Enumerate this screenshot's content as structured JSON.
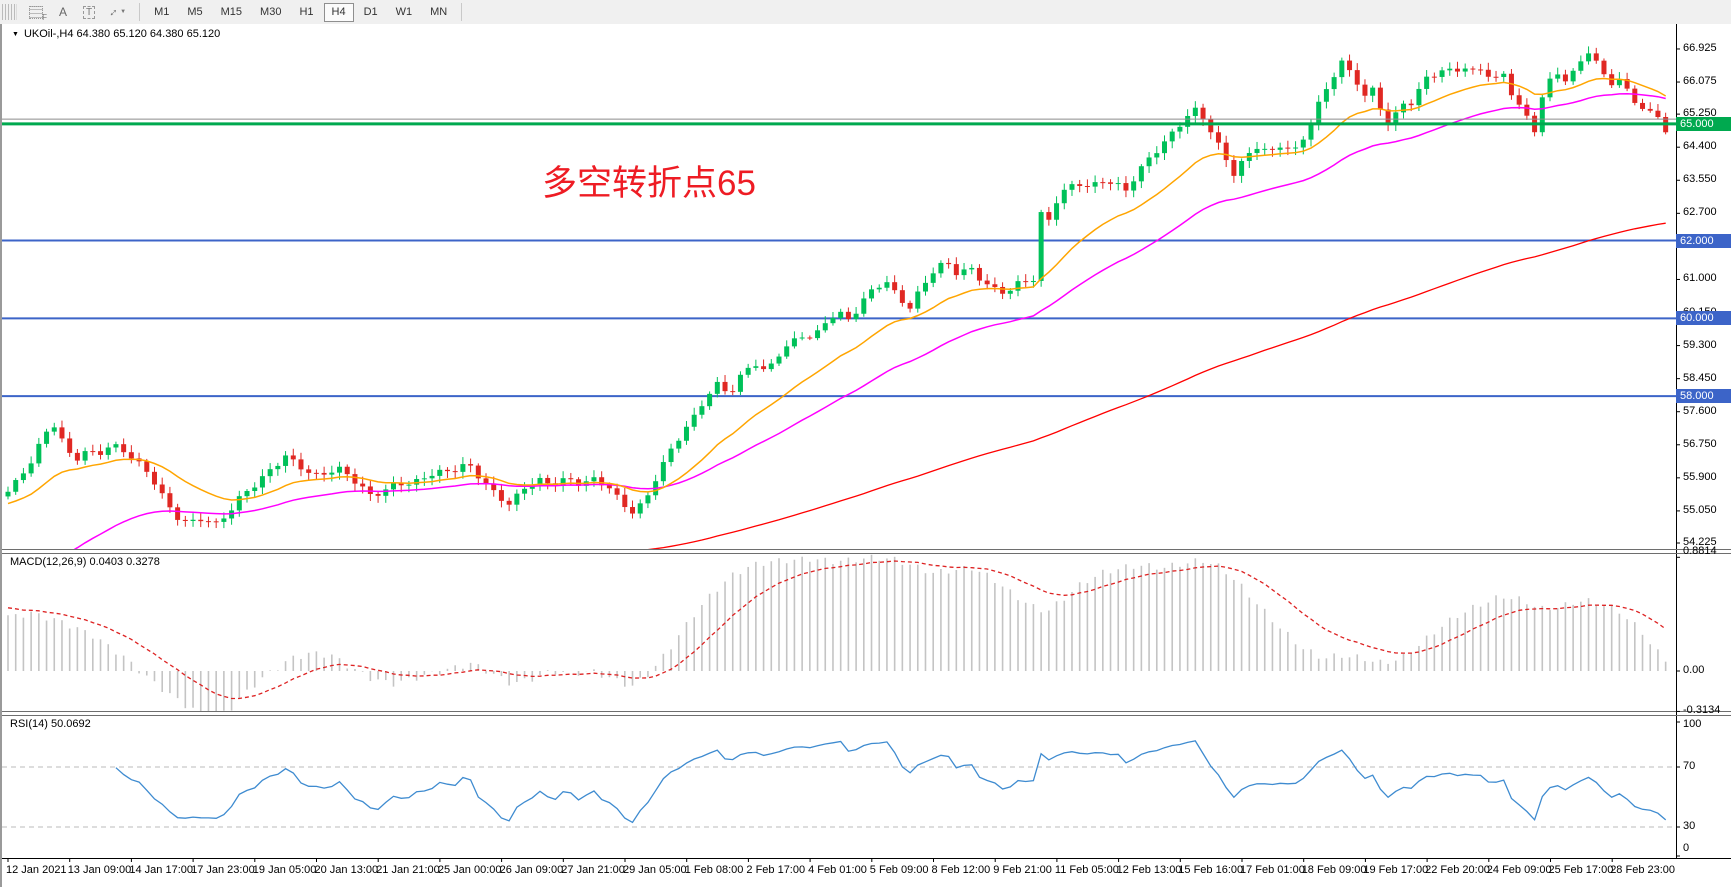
{
  "toolbar": {
    "icons": [
      {
        "name": "chart-grid-f-icon",
        "glyph": "F"
      },
      {
        "name": "font-a-icon",
        "glyph": "A"
      },
      {
        "name": "text-label-icon",
        "glyph": "T"
      },
      {
        "name": "arrange-arrows-icon",
        "glyph": "↕"
      },
      {
        "name": "dropdown-caret-icon",
        "glyph": "▼"
      }
    ],
    "timeframes": [
      {
        "label": "M1",
        "active": false
      },
      {
        "label": "M5",
        "active": false
      },
      {
        "label": "M15",
        "active": false
      },
      {
        "label": "M30",
        "active": false
      },
      {
        "label": "H1",
        "active": false
      },
      {
        "label": "H4",
        "active": true
      },
      {
        "label": "D1",
        "active": false
      },
      {
        "label": "W1",
        "active": false
      },
      {
        "label": "MN",
        "active": false
      }
    ]
  },
  "header": {
    "symbol_line": "UKOil-,H4  64.380 65.120 64.380 65.120"
  },
  "annotation": {
    "text": "多空转折点65",
    "color": "#ee1c24"
  },
  "panes": {
    "macd": {
      "label": "MACD(12,26,9) 0.0403 0.3278",
      "axis_labels": [
        "0.8814",
        "0.00",
        "-0.3134"
      ]
    },
    "rsi": {
      "label": "RSI(14) 50.0692",
      "axis_labels": [
        "100",
        "70",
        "30",
        "0"
      ]
    }
  },
  "colors": {
    "candle_up": "#00c159",
    "candle_down": "#e02823",
    "ma_fast": "#ffa500",
    "ma_medium": "#ff00ff",
    "ma_slow": "#ff0000",
    "level_green": "#00a94f",
    "level_blue": "#3c64c8",
    "bid_gray": "#8c8c8c",
    "macd_hist": "#c4c4c4",
    "macd_signal": "#dd2222",
    "rsi_line": "#3e8bd0"
  },
  "chart_data": {
    "type": "candlestick",
    "symbol": "UKOil-",
    "timeframe": "H4",
    "current_bar": {
      "open": 64.38,
      "high": 65.12,
      "low": 64.38,
      "close": 65.12
    },
    "bid_price": 65.12,
    "y_axis": {
      "min": 54.225,
      "max": 66.925,
      "ticks": [
        66.925,
        66.075,
        65.25,
        64.4,
        63.55,
        62.7,
        61.85,
        61.0,
        60.15,
        59.3,
        58.45,
        57.6,
        56.75,
        55.9,
        55.05,
        54.225
      ]
    },
    "horizontal_levels": [
      {
        "price": 65.0,
        "label": "65.000",
        "color": "#00a94f",
        "width": 3
      },
      {
        "price": 62.0,
        "label": "62.000",
        "color": "#3c64c8",
        "width": 2
      },
      {
        "price": 60.0,
        "label": "60.000",
        "color": "#3c64c8",
        "width": 2
      },
      {
        "price": 58.0,
        "label": "58.000",
        "color": "#3c64c8",
        "width": 2
      }
    ],
    "x_axis": {
      "labels": [
        "12 Jan 2021",
        "13 Jan 09:00",
        "14 Jan 17:00",
        "17 Jan 23:00",
        "19 Jan 05:00",
        "20 Jan 13:00",
        "21 Jan 21:00",
        "25 Jan 00:00",
        "26 Jan 09:00",
        "27 Jan 21:00",
        "29 Jan 05:00",
        "1 Feb 08:00",
        "2 Feb 17:00",
        "4 Feb 01:00",
        "5 Feb 09:00",
        "8 Feb 12:00",
        "9 Feb 21:00",
        "11 Feb 05:00",
        "12 Feb 13:00",
        "15 Feb 16:00",
        "17 Feb 01:00",
        "18 Feb 09:00",
        "19 Feb 17:00",
        "22 Feb 20:00",
        "24 Feb 09:00",
        "25 Feb 17:00",
        "28 Feb 23:00"
      ]
    },
    "price_close_path": [
      [
        8,
        55.5
      ],
      [
        18,
        55.9
      ],
      [
        30,
        56.3
      ],
      [
        44,
        57.1
      ],
      [
        52,
        57.3
      ],
      [
        62,
        56.8
      ],
      [
        72,
        56.4
      ],
      [
        84,
        56.6
      ],
      [
        96,
        56.5
      ],
      [
        110,
        56.7
      ],
      [
        122,
        56.55
      ],
      [
        134,
        56.3
      ],
      [
        148,
        56.0
      ],
      [
        160,
        55.5
      ],
      [
        172,
        55.0
      ],
      [
        186,
        54.75
      ],
      [
        200,
        54.85
      ],
      [
        214,
        54.65
      ],
      [
        228,
        55.0
      ],
      [
        242,
        55.5
      ],
      [
        256,
        55.8
      ],
      [
        270,
        56.2
      ],
      [
        284,
        56.5
      ],
      [
        298,
        56.2
      ],
      [
        312,
        55.9
      ],
      [
        326,
        56.0
      ],
      [
        340,
        56.1
      ],
      [
        354,
        55.8
      ],
      [
        368,
        55.5
      ],
      [
        382,
        55.6
      ],
      [
        396,
        55.8
      ],
      [
        410,
        55.7
      ],
      [
        424,
        55.9
      ],
      [
        438,
        56.0
      ],
      [
        452,
        56.1
      ],
      [
        466,
        56.3
      ],
      [
        480,
        55.9
      ],
      [
        494,
        55.5
      ],
      [
        508,
        55.2
      ],
      [
        522,
        55.6
      ],
      [
        536,
        55.8
      ],
      [
        550,
        55.7
      ],
      [
        564,
        55.9
      ],
      [
        578,
        55.8
      ],
      [
        592,
        55.9
      ],
      [
        606,
        55.7
      ],
      [
        620,
        55.2
      ],
      [
        632,
        54.95
      ],
      [
        644,
        55.3
      ],
      [
        656,
        56.0
      ],
      [
        668,
        56.6
      ],
      [
        680,
        57.1
      ],
      [
        692,
        57.5
      ],
      [
        704,
        58.0
      ],
      [
        716,
        58.3
      ],
      [
        728,
        58.0
      ],
      [
        740,
        58.5
      ],
      [
        752,
        58.85
      ],
      [
        764,
        58.6
      ],
      [
        776,
        59.1
      ],
      [
        788,
        59.4
      ],
      [
        800,
        59.6
      ],
      [
        812,
        59.5
      ],
      [
        824,
        59.9
      ],
      [
        836,
        60.1
      ],
      [
        848,
        59.9
      ],
      [
        860,
        60.4
      ],
      [
        872,
        60.8
      ],
      [
        884,
        61.0
      ],
      [
        896,
        60.6
      ],
      [
        908,
        60.3
      ],
      [
        920,
        60.8
      ],
      [
        932,
        61.2
      ],
      [
        944,
        61.4
      ],
      [
        956,
        61.1
      ],
      [
        968,
        61.3
      ],
      [
        980,
        61.0
      ],
      [
        992,
        60.8
      ],
      [
        1004,
        60.7
      ],
      [
        1016,
        60.9
      ],
      [
        1034,
        61.0
      ],
      [
        1040,
        62.9
      ],
      [
        1046,
        62.4
      ],
      [
        1052,
        62.9
      ],
      [
        1064,
        63.3
      ],
      [
        1076,
        63.5
      ],
      [
        1088,
        63.4
      ],
      [
        1100,
        63.6
      ],
      [
        1112,
        63.5
      ],
      [
        1124,
        63.3
      ],
      [
        1136,
        63.7
      ],
      [
        1148,
        64.1
      ],
      [
        1160,
        64.4
      ],
      [
        1172,
        64.8
      ],
      [
        1184,
        65.2
      ],
      [
        1196,
        65.45
      ],
      [
        1208,
        64.9
      ],
      [
        1220,
        64.3
      ],
      [
        1232,
        63.7
      ],
      [
        1244,
        64.1
      ],
      [
        1256,
        64.4
      ],
      [
        1268,
        64.2
      ],
      [
        1280,
        64.5
      ],
      [
        1292,
        64.3
      ],
      [
        1304,
        64.8
      ],
      [
        1316,
        65.5
      ],
      [
        1328,
        66.1
      ],
      [
        1340,
        66.55
      ],
      [
        1348,
        66.3
      ],
      [
        1356,
        66.0
      ],
      [
        1364,
        65.6
      ],
      [
        1372,
        65.9
      ],
      [
        1380,
        65.3
      ],
      [
        1388,
        64.9
      ],
      [
        1396,
        65.4
      ],
      [
        1404,
        65.7
      ],
      [
        1412,
        65.5
      ],
      [
        1420,
        66.1
      ],
      [
        1428,
        66.35
      ],
      [
        1436,
        66.2
      ],
      [
        1444,
        66.4
      ],
      [
        1452,
        66.3
      ],
      [
        1460,
        66.45
      ],
      [
        1468,
        66.2
      ],
      [
        1476,
        66.5
      ],
      [
        1484,
        66.3
      ],
      [
        1492,
        66.05
      ],
      [
        1500,
        66.5
      ],
      [
        1508,
        65.9
      ],
      [
        1516,
        65.5
      ],
      [
        1524,
        65.3
      ],
      [
        1532,
        64.8
      ],
      [
        1540,
        65.6
      ],
      [
        1548,
        66.1
      ],
      [
        1556,
        66.3
      ],
      [
        1564,
        66.0
      ],
      [
        1572,
        66.3
      ],
      [
        1580,
        66.7
      ],
      [
        1588,
        66.85
      ],
      [
        1596,
        66.5
      ],
      [
        1604,
        66.3
      ],
      [
        1612,
        66.0
      ],
      [
        1620,
        66.2
      ],
      [
        1628,
        65.8
      ],
      [
        1636,
        65.5
      ],
      [
        1644,
        65.2
      ],
      [
        1652,
        65.35
      ],
      [
        1660,
        65.05
      ],
      [
        1666,
        64.5
      ],
      [
        1670,
        65.12
      ]
    ],
    "indicators": [
      {
        "name": "MACD",
        "params": "12,26,9",
        "main_value": 0.0403,
        "signal_value": 0.3278,
        "axis": [
          0.8814,
          0.0,
          -0.3134
        ],
        "macd_path": [
          [
            8,
            0.42
          ],
          [
            30,
            0.45
          ],
          [
            60,
            0.38
          ],
          [
            90,
            0.28
          ],
          [
            120,
            0.12
          ],
          [
            150,
            -0.08
          ],
          [
            180,
            -0.25
          ],
          [
            200,
            -0.33
          ],
          [
            215,
            -0.36
          ],
          [
            230,
            -0.28
          ],
          [
            250,
            -0.12
          ],
          [
            270,
            0.0
          ],
          [
            290,
            0.1
          ],
          [
            310,
            0.14
          ],
          [
            330,
            0.12
          ],
          [
            350,
            0.02
          ],
          [
            370,
            -0.06
          ],
          [
            390,
            -0.1
          ],
          [
            410,
            -0.06
          ],
          [
            430,
            -0.02
          ],
          [
            450,
            0.02
          ],
          [
            470,
            0.06
          ],
          [
            490,
            -0.02
          ],
          [
            510,
            -0.1
          ],
          [
            530,
            -0.06
          ],
          [
            550,
            0.0
          ],
          [
            570,
            -0.02
          ],
          [
            590,
            0.0
          ],
          [
            610,
            -0.06
          ],
          [
            630,
            -0.12
          ],
          [
            650,
            0.0
          ],
          [
            670,
            0.2
          ],
          [
            690,
            0.42
          ],
          [
            710,
            0.6
          ],
          [
            730,
            0.74
          ],
          [
            750,
            0.82
          ],
          [
            770,
            0.85
          ],
          [
            790,
            0.86
          ],
          [
            810,
            0.87
          ],
          [
            830,
            0.85
          ],
          [
            850,
            0.86
          ],
          [
            870,
            0.88
          ],
          [
            890,
            0.87
          ],
          [
            910,
            0.82
          ],
          [
            930,
            0.76
          ],
          [
            950,
            0.78
          ],
          [
            970,
            0.8
          ],
          [
            990,
            0.72
          ],
          [
            1010,
            0.6
          ],
          [
            1030,
            0.5
          ],
          [
            1045,
            0.46
          ],
          [
            1060,
            0.55
          ],
          [
            1080,
            0.68
          ],
          [
            1100,
            0.76
          ],
          [
            1120,
            0.8
          ],
          [
            1140,
            0.82
          ],
          [
            1160,
            0.8
          ],
          [
            1180,
            0.83
          ],
          [
            1200,
            0.86
          ],
          [
            1220,
            0.8
          ],
          [
            1240,
            0.65
          ],
          [
            1260,
            0.48
          ],
          [
            1280,
            0.32
          ],
          [
            1300,
            0.18
          ],
          [
            1320,
            0.1
          ],
          [
            1340,
            0.12
          ],
          [
            1360,
            0.1
          ],
          [
            1380,
            0.06
          ],
          [
            1400,
            0.1
          ],
          [
            1420,
            0.22
          ],
          [
            1440,
            0.35
          ],
          [
            1460,
            0.45
          ],
          [
            1480,
            0.52
          ],
          [
            1500,
            0.58
          ],
          [
            1520,
            0.55
          ],
          [
            1540,
            0.48
          ],
          [
            1560,
            0.5
          ],
          [
            1580,
            0.55
          ],
          [
            1600,
            0.52
          ],
          [
            1620,
            0.45
          ],
          [
            1640,
            0.3
          ],
          [
            1655,
            0.15
          ],
          [
            1670,
            0.04
          ]
        ]
      },
      {
        "name": "RSI",
        "params": "14",
        "value": 50.0692,
        "axis": [
          100,
          70,
          30,
          0
        ],
        "gridlines": [
          70,
          30
        ]
      }
    ]
  }
}
